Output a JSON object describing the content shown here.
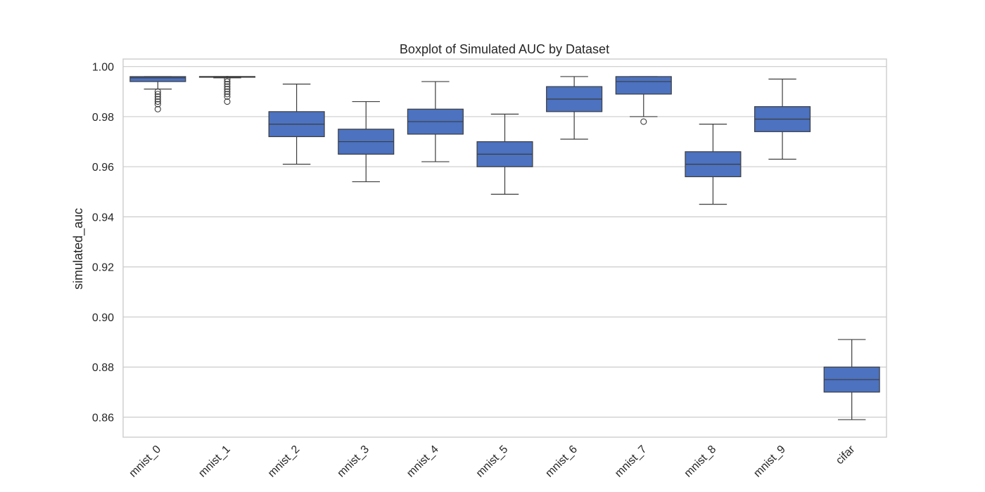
{
  "chart_data": {
    "type": "box",
    "title": "Boxplot of Simulated AUC by Dataset",
    "xlabel": "",
    "ylabel": "simulated_auc",
    "ylim": [
      0.852,
      1.003
    ],
    "yticks": [
      0.86,
      0.88,
      0.9,
      0.92,
      0.94,
      0.96,
      0.98,
      1.0
    ],
    "ytick_labels": [
      "0.86",
      "0.88",
      "0.90",
      "0.92",
      "0.94",
      "0.96",
      "0.98",
      "1.00"
    ],
    "grid": true,
    "box_color": "#4c72c0",
    "categories": [
      "mnist_0",
      "mnist_1",
      "mnist_2",
      "mnist_3",
      "mnist_4",
      "mnist_5",
      "mnist_6",
      "mnist_7",
      "mnist_8",
      "mnist_9",
      "cifar"
    ],
    "boxes": [
      {
        "whislo": 0.991,
        "q1": 0.994,
        "med": 0.9955,
        "q3": 0.996,
        "whishi": 0.996,
        "fliers": [
          0.983,
          0.985,
          0.986,
          0.987,
          0.988,
          0.989,
          0.99
        ]
      },
      {
        "whislo": 0.9955,
        "q1": 0.9958,
        "med": 0.996,
        "q3": 0.996,
        "whishi": 0.996,
        "fliers": [
          0.986,
          0.988,
          0.989,
          0.99,
          0.991,
          0.992,
          0.993,
          0.994,
          0.995
        ]
      },
      {
        "whislo": 0.961,
        "q1": 0.972,
        "med": 0.977,
        "q3": 0.982,
        "whishi": 0.993,
        "fliers": []
      },
      {
        "whislo": 0.954,
        "q1": 0.965,
        "med": 0.97,
        "q3": 0.975,
        "whishi": 0.986,
        "fliers": []
      },
      {
        "whislo": 0.962,
        "q1": 0.973,
        "med": 0.978,
        "q3": 0.983,
        "whishi": 0.994,
        "fliers": []
      },
      {
        "whislo": 0.949,
        "q1": 0.96,
        "med": 0.965,
        "q3": 0.97,
        "whishi": 0.981,
        "fliers": []
      },
      {
        "whislo": 0.971,
        "q1": 0.982,
        "med": 0.987,
        "q3": 0.992,
        "whishi": 0.996,
        "fliers": []
      },
      {
        "whislo": 0.98,
        "q1": 0.989,
        "med": 0.994,
        "q3": 0.996,
        "whishi": 0.996,
        "fliers": [
          0.978
        ]
      },
      {
        "whislo": 0.945,
        "q1": 0.956,
        "med": 0.961,
        "q3": 0.966,
        "whishi": 0.977,
        "fliers": []
      },
      {
        "whislo": 0.963,
        "q1": 0.974,
        "med": 0.979,
        "q3": 0.984,
        "whishi": 0.995,
        "fliers": []
      },
      {
        "whislo": 0.859,
        "q1": 0.87,
        "med": 0.875,
        "q3": 0.88,
        "whishi": 0.891,
        "fliers": []
      }
    ]
  }
}
